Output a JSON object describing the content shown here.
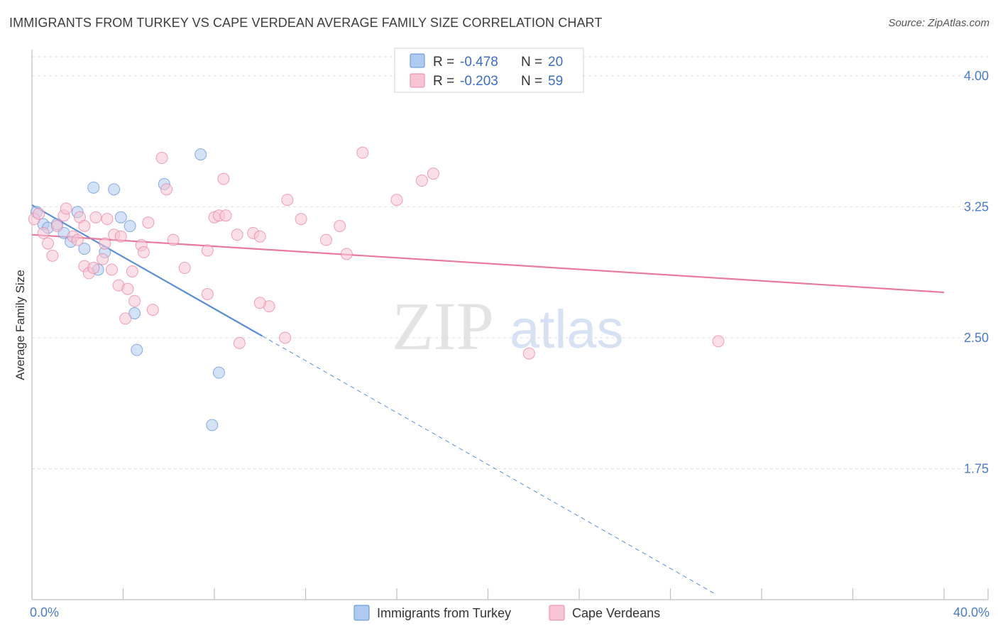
{
  "title": "IMMIGRANTS FROM TURKEY VS CAPE VERDEAN AVERAGE FAMILY SIZE CORRELATION CHART",
  "source": "Source: ZipAtlas.com",
  "watermark": {
    "zip": "ZIP",
    "atlas": "atlas"
  },
  "legend_top": [
    {
      "r_label": "R = ",
      "r_value": "-0.478",
      "n_label": "N = ",
      "n_value": "20",
      "color": "#aecbef",
      "stroke": "#5a8fd6"
    },
    {
      "r_label": "R = ",
      "r_value": "-0.203",
      "n_label": "N = ",
      "n_value": "59",
      "color": "#f7c4d4",
      "stroke": "#e88aa8"
    }
  ],
  "legend_bottom": [
    {
      "label": "Immigrants from Turkey",
      "color": "#aecbef",
      "stroke": "#5a8fd6"
    },
    {
      "label": "Cape Verdeans",
      "color": "#f7c4d4",
      "stroke": "#e88aa8"
    }
  ],
  "chart_data": {
    "type": "scatter",
    "title": "IMMIGRANTS FROM TURKEY VS CAPE VERDEAN AVERAGE FAMILY SIZE CORRELATION CHART",
    "xlabel": "",
    "ylabel": "Average Family Size",
    "xlim": [
      0,
      40
    ],
    "ylim": [
      1.0,
      4.15
    ],
    "x_tick_labels": [
      {
        "value": 0,
        "label": "0.0%"
      },
      {
        "value": 40,
        "label": "40.0%"
      }
    ],
    "y_tick_labels": [
      {
        "value": 4.0,
        "label": "4.00"
      },
      {
        "value": 3.25,
        "label": "3.25"
      },
      {
        "value": 2.5,
        "label": "2.50"
      },
      {
        "value": 1.75,
        "label": "1.75"
      }
    ],
    "grid": true,
    "series": [
      {
        "name": "Immigrants from Turkey",
        "color": "#5a8fd6",
        "fill": "#aecbef",
        "points": [
          [
            0.2,
            3.22
          ],
          [
            0.5,
            3.15
          ],
          [
            0.7,
            3.13
          ],
          [
            1.1,
            3.15
          ],
          [
            1.4,
            3.1
          ],
          [
            1.7,
            3.05
          ],
          [
            2.0,
            3.22
          ],
          [
            2.3,
            3.01
          ],
          [
            2.7,
            3.36
          ],
          [
            2.9,
            2.89
          ],
          [
            3.2,
            2.99
          ],
          [
            3.6,
            3.35
          ],
          [
            3.9,
            3.19
          ],
          [
            4.3,
            3.14
          ],
          [
            4.5,
            2.64
          ],
          [
            4.6,
            2.43
          ],
          [
            5.8,
            3.38
          ],
          [
            7.4,
            3.55
          ],
          [
            8.2,
            2.3
          ],
          [
            7.9,
            2.0
          ]
        ],
        "trend": {
          "x": [
            0,
            10.1
          ],
          "y": [
            3.26,
            2.51
          ],
          "extended": {
            "x": [
              10.1,
              30.0
            ],
            "y": [
              2.51,
              1.03
            ]
          }
        }
      },
      {
        "name": "Cape Verdeans",
        "color": "#e87a9f",
        "fill": "#f7c4d4",
        "points": [
          [
            0.1,
            3.18
          ],
          [
            0.3,
            3.21
          ],
          [
            0.5,
            3.1
          ],
          [
            0.7,
            3.04
          ],
          [
            0.9,
            2.97
          ],
          [
            1.1,
            3.14
          ],
          [
            1.4,
            3.2
          ],
          [
            1.5,
            3.24
          ],
          [
            1.8,
            3.08
          ],
          [
            2.0,
            3.06
          ],
          [
            2.1,
            3.19
          ],
          [
            2.3,
            3.14
          ],
          [
            2.3,
            2.91
          ],
          [
            2.5,
            2.87
          ],
          [
            2.7,
            2.9
          ],
          [
            2.8,
            3.19
          ],
          [
            3.1,
            2.95
          ],
          [
            3.2,
            3.04
          ],
          [
            3.3,
            3.18
          ],
          [
            3.5,
            2.89
          ],
          [
            3.6,
            3.09
          ],
          [
            3.8,
            2.8
          ],
          [
            3.9,
            3.08
          ],
          [
            4.1,
            2.61
          ],
          [
            4.2,
            2.78
          ],
          [
            4.4,
            2.88
          ],
          [
            4.5,
            2.71
          ],
          [
            4.8,
            3.03
          ],
          [
            4.9,
            2.99
          ],
          [
            5.1,
            3.16
          ],
          [
            5.3,
            2.66
          ],
          [
            5.7,
            3.53
          ],
          [
            5.9,
            3.35
          ],
          [
            6.2,
            3.06
          ],
          [
            6.7,
            2.9
          ],
          [
            7.7,
            2.75
          ],
          [
            7.7,
            3.0
          ],
          [
            8.0,
            3.19
          ],
          [
            8.2,
            3.2
          ],
          [
            8.4,
            3.41
          ],
          [
            8.5,
            3.2
          ],
          [
            9.0,
            3.09
          ],
          [
            9.1,
            2.47
          ],
          [
            9.7,
            3.1
          ],
          [
            10.0,
            3.08
          ],
          [
            10.4,
            2.68
          ],
          [
            11.1,
            2.5
          ],
          [
            11.2,
            3.29
          ],
          [
            11.8,
            3.18
          ],
          [
            12.9,
            3.06
          ],
          [
            13.5,
            3.14
          ],
          [
            13.8,
            2.98
          ],
          [
            14.5,
            3.56
          ],
          [
            16.0,
            3.29
          ],
          [
            17.1,
            3.4
          ],
          [
            17.6,
            3.44
          ],
          [
            21.8,
            2.41
          ],
          [
            30.1,
            2.48
          ],
          [
            10.0,
            2.7
          ]
        ],
        "trend": {
          "x": [
            0,
            40
          ],
          "y": [
            3.09,
            2.76
          ]
        }
      }
    ]
  }
}
